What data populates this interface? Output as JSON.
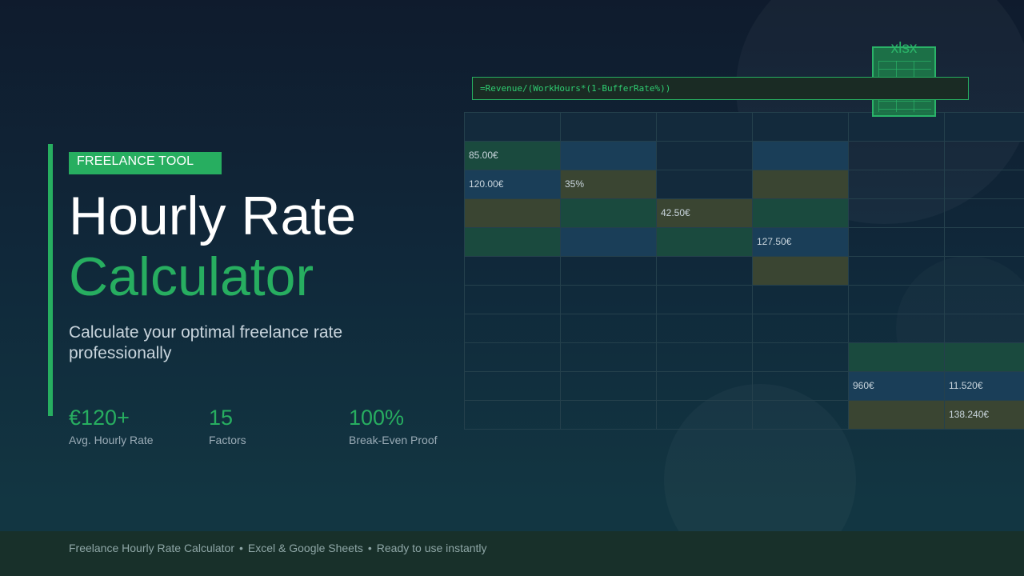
{
  "badge": "FREELANCE TOOL",
  "title": {
    "line1": "Hourly Rate",
    "line2": "Calculator"
  },
  "subtitle": "Calculate your optimal freelance rate professionally",
  "stats": [
    {
      "value": "€120+",
      "label": "Avg. Hourly Rate"
    },
    {
      "value": "15",
      "label": "Factors"
    },
    {
      "value": "100%",
      "label": "Break-Even Proof"
    }
  ],
  "file_icon": {
    "name": "spreadsheet-file-icon",
    "label": "xlsx"
  },
  "formula": "=Revenue/(WorkHours*(1-BufferRate%))",
  "colors": {
    "accent": "#27ae60",
    "green_cell": "#1a4a3e",
    "blue_cell": "#1a3e58",
    "olive_cell": "#3a4532",
    "dark_cell": "#132a3c"
  },
  "sheet": {
    "rows": [
      [
        {
          "text": "",
          "fill": "dark"
        },
        {
          "text": "",
          "fill": "dark"
        },
        {
          "text": "",
          "fill": "dark"
        },
        {
          "text": "",
          "fill": "dark"
        },
        {
          "text": "",
          "fill": "dark"
        },
        {
          "text": "",
          "fill": "dark"
        }
      ],
      [
        {
          "text": "85.00€",
          "fill": "green"
        },
        {
          "text": "",
          "fill": "blue"
        },
        {
          "text": "",
          "fill": "dark"
        },
        {
          "text": "",
          "fill": "blue"
        },
        {
          "text": "",
          "fill": "none"
        },
        {
          "text": "",
          "fill": "none"
        }
      ],
      [
        {
          "text": "120.00€",
          "fill": "blue"
        },
        {
          "text": "35%",
          "fill": "olive"
        },
        {
          "text": "",
          "fill": "dark"
        },
        {
          "text": "",
          "fill": "olive"
        },
        {
          "text": "",
          "fill": "none"
        },
        {
          "text": "",
          "fill": "none"
        }
      ],
      [
        {
          "text": "",
          "fill": "olive"
        },
        {
          "text": "",
          "fill": "green"
        },
        {
          "text": "42.50€",
          "fill": "olive"
        },
        {
          "text": "",
          "fill": "green"
        },
        {
          "text": "",
          "fill": "none"
        },
        {
          "text": "",
          "fill": "none"
        }
      ],
      [
        {
          "text": "",
          "fill": "green"
        },
        {
          "text": "",
          "fill": "blue"
        },
        {
          "text": "",
          "fill": "green"
        },
        {
          "text": "127.50€",
          "fill": "blue"
        },
        {
          "text": "",
          "fill": "none"
        },
        {
          "text": "",
          "fill": "none"
        }
      ],
      [
        {
          "text": "",
          "fill": "none"
        },
        {
          "text": "",
          "fill": "none"
        },
        {
          "text": "",
          "fill": "none"
        },
        {
          "text": "",
          "fill": "olive"
        },
        {
          "text": "",
          "fill": "none"
        },
        {
          "text": "",
          "fill": "none"
        }
      ],
      [
        {
          "text": "",
          "fill": "none"
        },
        {
          "text": "",
          "fill": "none"
        },
        {
          "text": "",
          "fill": "none"
        },
        {
          "text": "",
          "fill": "none"
        },
        {
          "text": "",
          "fill": "none"
        },
        {
          "text": "",
          "fill": "none"
        }
      ],
      [
        {
          "text": "",
          "fill": "none"
        },
        {
          "text": "",
          "fill": "none"
        },
        {
          "text": "",
          "fill": "none"
        },
        {
          "text": "",
          "fill": "none"
        },
        {
          "text": "",
          "fill": "none"
        },
        {
          "text": "",
          "fill": "none"
        }
      ],
      [
        {
          "text": "",
          "fill": "none"
        },
        {
          "text": "",
          "fill": "none"
        },
        {
          "text": "",
          "fill": "none"
        },
        {
          "text": "",
          "fill": "none"
        },
        {
          "text": "",
          "fill": "green"
        },
        {
          "text": "",
          "fill": "green"
        }
      ],
      [
        {
          "text": "",
          "fill": "none"
        },
        {
          "text": "",
          "fill": "none"
        },
        {
          "text": "",
          "fill": "none"
        },
        {
          "text": "",
          "fill": "none"
        },
        {
          "text": "960€",
          "fill": "blue"
        },
        {
          "text": "11.520€",
          "fill": "blue"
        }
      ],
      [
        {
          "text": "",
          "fill": "none"
        },
        {
          "text": "",
          "fill": "none"
        },
        {
          "text": "",
          "fill": "none"
        },
        {
          "text": "",
          "fill": "none"
        },
        {
          "text": "",
          "fill": "olive"
        },
        {
          "text": "138.240€",
          "fill": "olive"
        }
      ]
    ]
  },
  "footer": {
    "items": [
      "Freelance Hourly Rate Calculator",
      "Excel & Google Sheets",
      "Ready to use instantly"
    ],
    "separator": "•"
  }
}
